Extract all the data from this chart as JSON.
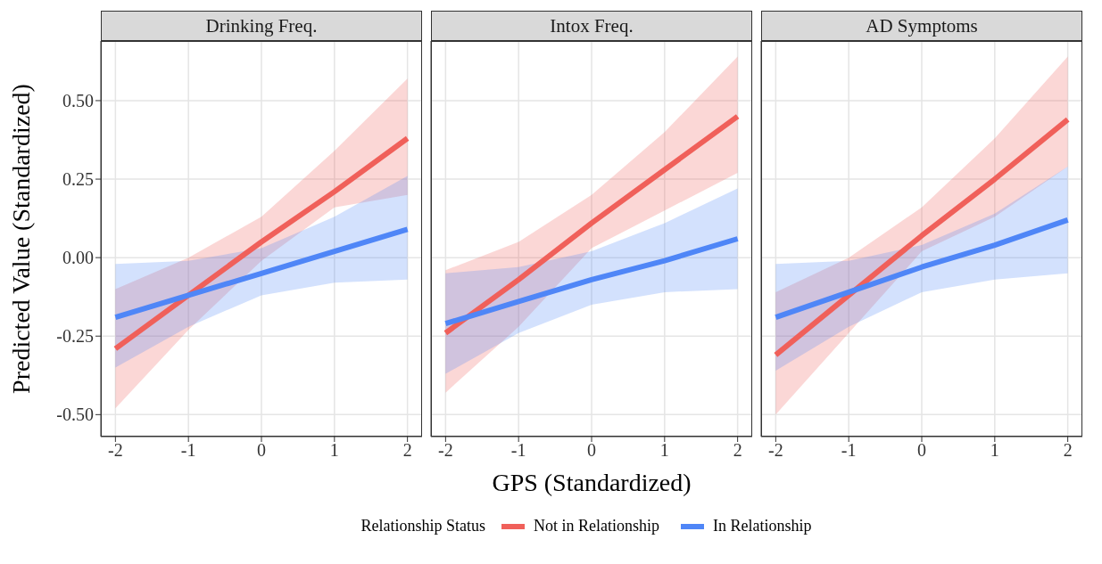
{
  "chart_data": [
    {
      "type": "line",
      "title": "Drinking Freq.",
      "ylabel": "Predicted Value (Standardized)",
      "x": [
        -2,
        -1,
        0,
        1,
        2
      ],
      "xlim": [
        -2.2,
        2.2
      ],
      "xticks": [
        -2,
        -1,
        0,
        1,
        2
      ],
      "ylim": [
        -0.57,
        0.69
      ],
      "yticks": [
        {
          "value": -0.5,
          "label": "-0.50"
        },
        {
          "value": -0.25,
          "label": "-0.25"
        },
        {
          "value": 0,
          "label": "0.00"
        },
        {
          "value": 0.25,
          "label": "0.25"
        },
        {
          "value": 0.5,
          "label": "0.50"
        }
      ],
      "grid": true,
      "series": [
        {
          "color": "#f0605a",
          "values": [
            -0.29,
            -0.12,
            0.05,
            0.21,
            0.38
          ],
          "lower": [
            -0.48,
            -0.23,
            -0.01,
            0.16,
            0.2
          ],
          "upper": [
            -0.1,
            0,
            0.13,
            0.34,
            0.57
          ]
        },
        {
          "color": "#4f86f7",
          "values": [
            -0.19,
            -0.12,
            -0.05,
            0.02,
            0.09
          ],
          "lower": [
            -0.35,
            -0.22,
            -0.12,
            -0.08,
            -0.07
          ],
          "upper": [
            -0.02,
            -0.01,
            0.03,
            0.13,
            0.26
          ]
        }
      ]
    },
    {
      "type": "line",
      "title": "Intox Freq.",
      "xlabel": "GPS (Standardized)",
      "legend_title": "Relationship Status",
      "legend": "bottom",
      "tick_labels": "x",
      "x": [
        -2,
        -1,
        0,
        1,
        2
      ],
      "xlim": [
        -2.2,
        2.2
      ],
      "xticks": [
        -2,
        -1,
        0,
        1,
        2
      ],
      "ylim": [
        -0.57,
        0.69
      ],
      "yticks": [
        -0.5,
        -0.25,
        0,
        0.25,
        0.5
      ],
      "grid": true,
      "series": [
        {
          "name": "Not in Relationship",
          "color": "#f0605a",
          "values": [
            -0.24,
            -0.07,
            0.11,
            0.28,
            0.45
          ],
          "lower": [
            -0.43,
            -0.22,
            0.03,
            0.15,
            0.27
          ],
          "upper": [
            -0.04,
            0.05,
            0.2,
            0.4,
            0.64
          ]
        },
        {
          "name": "In Relationship",
          "color": "#4f86f7",
          "values": [
            -0.21,
            -0.14,
            -0.07,
            -0.01,
            0.06
          ],
          "lower": [
            -0.37,
            -0.24,
            -0.15,
            -0.11,
            -0.1
          ],
          "upper": [
            -0.05,
            -0.03,
            0.02,
            0.11,
            0.22
          ]
        }
      ]
    },
    {
      "type": "line",
      "title": "AD Symptoms",
      "tick_labels": "x",
      "x": [
        -2,
        -1,
        0,
        1,
        2
      ],
      "xlim": [
        -2.2,
        2.2
      ],
      "xticks": [
        -2,
        -1,
        0,
        1,
        2
      ],
      "ylim": [
        -0.57,
        0.69
      ],
      "yticks": [
        -0.5,
        -0.25,
        0,
        0.25,
        0.5
      ],
      "grid": true,
      "series": [
        {
          "color": "#f0605a",
          "values": [
            -0.31,
            -0.12,
            0.07,
            0.25,
            0.44
          ],
          "lower": [
            -0.5,
            -0.24,
            0.02,
            0.13,
            0.29
          ],
          "upper": [
            -0.11,
            0,
            0.16,
            0.38,
            0.64
          ]
        },
        {
          "color": "#4f86f7",
          "values": [
            -0.19,
            -0.11,
            -0.03,
            0.04,
            0.12
          ],
          "lower": [
            -0.36,
            -0.22,
            -0.11,
            -0.07,
            -0.05
          ],
          "upper": [
            -0.02,
            -0.01,
            0.04,
            0.14,
            0.29
          ]
        }
      ]
    }
  ]
}
